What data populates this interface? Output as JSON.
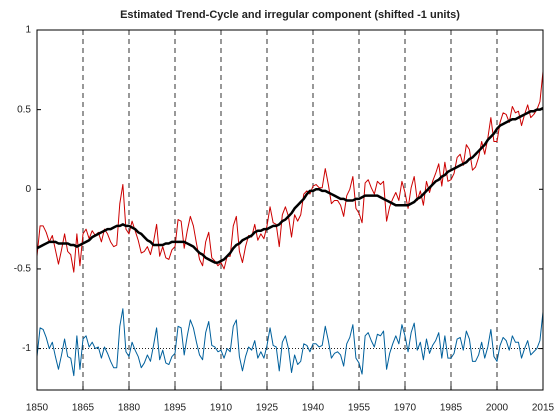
{
  "chart_data": {
    "type": "line",
    "title": "Estimated Trend-Cycle and irregular component (shifted -1 units)",
    "x": [
      1850,
      1851,
      1852,
      1853,
      1854,
      1855,
      1856,
      1857,
      1858,
      1859,
      1860,
      1861,
      1862,
      1863,
      1864,
      1865,
      1866,
      1867,
      1868,
      1869,
      1870,
      1871,
      1872,
      1873,
      1874,
      1875,
      1876,
      1877,
      1878,
      1879,
      1880,
      1881,
      1882,
      1883,
      1884,
      1885,
      1886,
      1887,
      1888,
      1889,
      1890,
      1891,
      1892,
      1893,
      1894,
      1895,
      1896,
      1897,
      1898,
      1899,
      1900,
      1901,
      1902,
      1903,
      1904,
      1905,
      1906,
      1907,
      1908,
      1909,
      1910,
      1911,
      1912,
      1913,
      1914,
      1915,
      1916,
      1917,
      1918,
      1919,
      1920,
      1921,
      1922,
      1923,
      1924,
      1925,
      1926,
      1927,
      1928,
      1929,
      1930,
      1931,
      1932,
      1933,
      1934,
      1935,
      1936,
      1937,
      1938,
      1939,
      1940,
      1941,
      1942,
      1943,
      1944,
      1945,
      1946,
      1947,
      1948,
      1949,
      1950,
      1951,
      1952,
      1953,
      1954,
      1955,
      1956,
      1957,
      1958,
      1959,
      1960,
      1961,
      1962,
      1963,
      1964,
      1965,
      1966,
      1967,
      1968,
      1969,
      1970,
      1971,
      1972,
      1973,
      1974,
      1975,
      1976,
      1977,
      1978,
      1979,
      1980,
      1981,
      1982,
      1983,
      1984,
      1985,
      1986,
      1987,
      1988,
      1989,
      1990,
      1991,
      1992,
      1993,
      1994,
      1995,
      1996,
      1997,
      1998,
      1999,
      2000,
      2001,
      2002,
      2003,
      2004,
      2005,
      2006,
      2007,
      2008,
      2009,
      2010,
      2011,
      2012,
      2013,
      2014,
      2015
    ],
    "series": [
      {
        "color": "#cc0000",
        "width": 1,
        "values": [
          -0.42,
          -0.23,
          -0.23,
          -0.27,
          -0.33,
          -0.29,
          -0.38,
          -0.47,
          -0.38,
          -0.28,
          -0.39,
          -0.41,
          -0.52,
          -0.28,
          -0.48,
          -0.28,
          -0.25,
          -0.31,
          -0.26,
          -0.29,
          -0.27,
          -0.33,
          -0.25,
          -0.28,
          -0.33,
          -0.36,
          -0.35,
          -0.09,
          0.03,
          -0.25,
          -0.28,
          -0.2,
          -0.26,
          -0.32,
          -0.4,
          -0.39,
          -0.36,
          -0.41,
          -0.33,
          -0.22,
          -0.42,
          -0.36,
          -0.43,
          -0.44,
          -0.38,
          -0.36,
          -0.19,
          -0.2,
          -0.37,
          -0.26,
          -0.17,
          -0.23,
          -0.34,
          -0.44,
          -0.48,
          -0.33,
          -0.27,
          -0.43,
          -0.45,
          -0.48,
          -0.46,
          -0.5,
          -0.42,
          -0.42,
          -0.23,
          -0.17,
          -0.39,
          -0.46,
          -0.36,
          -0.29,
          -0.3,
          -0.22,
          -0.32,
          -0.28,
          -0.31,
          -0.23,
          -0.11,
          -0.21,
          -0.22,
          -0.36,
          -0.16,
          -0.11,
          -0.17,
          -0.3,
          -0.16,
          -0.2,
          -0.16,
          -0.03,
          -0.01,
          -0.03,
          0.02,
          0.03,
          0.01,
          0.01,
          0.13,
          0.03,
          -0.09,
          -0.07,
          -0.07,
          -0.1,
          -0.17,
          -0.04,
          0,
          0.08,
          -0.12,
          -0.15,
          -0.21,
          0.04,
          0.06,
          0.01,
          -0.03,
          0.05,
          0.03,
          0.05,
          -0.2,
          -0.11,
          -0.06,
          -0.02,
          -0.07,
          0.05,
          -0.02,
          -0.12,
          0.01,
          0.08,
          -0.07,
          -0.01,
          -0.1,
          0.05,
          -0.02,
          0.05,
          0.1,
          0.16,
          0.02,
          0.17,
          0.05,
          0.06,
          0.1,
          0.2,
          0.22,
          0.15,
          0.28,
          0.25,
          0.12,
          0.14,
          0.2,
          0.3,
          0.22,
          0.32,
          0.45,
          0.3,
          0.3,
          0.42,
          0.48,
          0.47,
          0.42,
          0.52,
          0.48,
          0.49,
          0.4,
          0.47,
          0.53,
          0.45,
          0.47,
          0.5,
          0.55,
          0.74
        ]
      },
      {
        "color": "#000000",
        "width": 2.5,
        "values": [
          -0.37,
          -0.36,
          -0.35,
          -0.34,
          -0.33,
          -0.33,
          -0.33,
          -0.34,
          -0.34,
          -0.34,
          -0.34,
          -0.35,
          -0.35,
          -0.36,
          -0.35,
          -0.34,
          -0.33,
          -0.32,
          -0.3,
          -0.29,
          -0.28,
          -0.27,
          -0.26,
          -0.25,
          -0.25,
          -0.24,
          -0.23,
          -0.23,
          -0.22,
          -0.23,
          -0.23,
          -0.24,
          -0.25,
          -0.27,
          -0.28,
          -0.3,
          -0.32,
          -0.33,
          -0.35,
          -0.35,
          -0.35,
          -0.35,
          -0.34,
          -0.34,
          -0.33,
          -0.33,
          -0.33,
          -0.33,
          -0.33,
          -0.34,
          -0.35,
          -0.36,
          -0.38,
          -0.4,
          -0.41,
          -0.43,
          -0.44,
          -0.45,
          -0.46,
          -0.46,
          -0.45,
          -0.44,
          -0.42,
          -0.4,
          -0.37,
          -0.35,
          -0.34,
          -0.32,
          -0.31,
          -0.3,
          -0.29,
          -0.27,
          -0.26,
          -0.26,
          -0.25,
          -0.25,
          -0.24,
          -0.23,
          -0.23,
          -0.22,
          -0.2,
          -0.19,
          -0.17,
          -0.15,
          -0.12,
          -0.1,
          -0.08,
          -0.06,
          -0.03,
          -0.01,
          -0.01,
          0,
          0,
          -0.01,
          -0.01,
          -0.02,
          -0.03,
          -0.04,
          -0.05,
          -0.06,
          -0.06,
          -0.07,
          -0.07,
          -0.07,
          -0.06,
          -0.06,
          -0.05,
          -0.04,
          -0.04,
          -0.04,
          -0.04,
          -0.04,
          -0.05,
          -0.06,
          -0.07,
          -0.08,
          -0.09,
          -0.1,
          -0.1,
          -0.1,
          -0.1,
          -0.1,
          -0.09,
          -0.08,
          -0.06,
          -0.05,
          -0.03,
          -0.01,
          0.01,
          0.03,
          0.05,
          0.06,
          0.08,
          0.09,
          0.11,
          0.12,
          0.13,
          0.14,
          0.15,
          0.16,
          0.17,
          0.19,
          0.2,
          0.22,
          0.24,
          0.26,
          0.28,
          0.31,
          0.33,
          0.35,
          0.38,
          0.4,
          0.41,
          0.42,
          0.43,
          0.44,
          0.44,
          0.45,
          0.46,
          0.47,
          0.48,
          0.49,
          0.49,
          0.5,
          0.5,
          0.51
        ]
      },
      {
        "color": "#00609c",
        "width": 1,
        "values": [
          -1.05,
          -0.87,
          -0.88,
          -0.93,
          -1,
          -0.96,
          -1.05,
          -1.13,
          -1.04,
          -0.94,
          -1.05,
          -1.06,
          -1.17,
          -0.92,
          -1.13,
          -0.94,
          -0.92,
          -0.99,
          -0.96,
          -1,
          -0.99,
          -1.06,
          -0.99,
          -1.03,
          -1.08,
          -1.12,
          -1.12,
          -0.86,
          -0.75,
          -1.02,
          -1.05,
          -0.96,
          -1.01,
          -1.05,
          -1.12,
          -1.09,
          -1.04,
          -1.08,
          -0.98,
          -0.87,
          -1.07,
          -1.01,
          -1.09,
          -1.1,
          -1.05,
          -1.03,
          -0.86,
          -0.87,
          -1.04,
          -0.92,
          -0.82,
          -0.87,
          -0.96,
          -1.04,
          -1.07,
          -0.9,
          -0.83,
          -0.98,
          -0.99,
          -1.02,
          -1.01,
          -1.06,
          -1,
          -1.02,
          -0.86,
          -0.82,
          -1.05,
          -1.14,
          -1.05,
          -0.99,
          -1.01,
          -0.95,
          -1.06,
          -1.02,
          -1.06,
          -0.98,
          -0.87,
          -0.98,
          -0.99,
          -1.14,
          -0.96,
          -0.92,
          -1,
          -1.15,
          -1.04,
          -1.1,
          -1.08,
          -0.97,
          -0.98,
          -1.02,
          -0.97,
          -0.97,
          -0.99,
          -0.98,
          -0.86,
          -0.95,
          -1.06,
          -1.03,
          -1.02,
          -1.04,
          -1.11,
          -0.97,
          -0.93,
          -0.85,
          -1.06,
          -1.09,
          -1.16,
          -0.92,
          -0.9,
          -0.95,
          -0.99,
          -0.91,
          -0.92,
          -0.89,
          -1.13,
          -1.03,
          -0.97,
          -0.92,
          -0.97,
          -0.85,
          -0.92,
          -1.02,
          -0.9,
          -0.84,
          -1.01,
          -0.96,
          -1.07,
          -0.94,
          -1.03,
          -0.98,
          -0.95,
          -0.9,
          -1.06,
          -0.92,
          -1.06,
          -1.06,
          -1.03,
          -0.94,
          -0.93,
          -1.01,
          -0.89,
          -0.94,
          -1.08,
          -1.08,
          -1.04,
          -0.96,
          -1.06,
          -0.99,
          -0.88,
          -1.05,
          -1.08,
          -0.98,
          -0.93,
          -0.95,
          -1.01,
          -0.92,
          -0.96,
          -0.96,
          -1.06,
          -1,
          -0.95,
          -1.04,
          -1.02,
          -1,
          -0.95,
          -0.77
        ]
      }
    ],
    "xlim": [
      1850,
      2015
    ],
    "xticks": [
      1850,
      1865,
      1880,
      1895,
      1910,
      1925,
      1940,
      1955,
      1970,
      1985,
      2000,
      2015
    ],
    "ylim": [
      -1.26,
      1
    ],
    "yticks": [
      1,
      0.5,
      0,
      -0.5,
      -1
    ],
    "xgrid": "dashed",
    "hline": -1
  }
}
